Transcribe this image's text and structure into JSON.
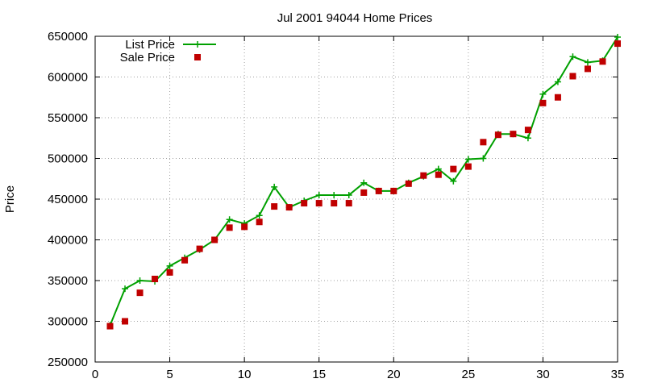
{
  "chart_data": {
    "type": "line",
    "title": "Jul 2001 94044 Home Prices",
    "xlabel": "",
    "ylabel": "Price",
    "xlim": [
      0,
      35
    ],
    "ylim": [
      250000,
      650000
    ],
    "x_ticks": [
      0,
      5,
      10,
      15,
      20,
      25,
      30,
      35
    ],
    "y_ticks": [
      250000,
      300000,
      350000,
      400000,
      450000,
      500000,
      550000,
      600000,
      650000
    ],
    "grid": true,
    "legend_position": "top-left",
    "x": [
      1,
      2,
      3,
      4,
      5,
      6,
      7,
      8,
      9,
      10,
      11,
      12,
      13,
      14,
      15,
      16,
      17,
      18,
      19,
      20,
      21,
      22,
      23,
      24,
      25,
      26,
      27,
      28,
      29,
      30,
      31,
      32,
      33,
      34,
      35
    ],
    "series": [
      {
        "name": "List Price",
        "style": "line-plus",
        "color": "#00a000",
        "values": [
          295000,
          340000,
          350000,
          349000,
          368000,
          378000,
          388000,
          400000,
          425000,
          420000,
          430000,
          465000,
          440000,
          448000,
          455000,
          455000,
          455000,
          470000,
          460000,
          460000,
          470000,
          478000,
          487000,
          472000,
          499000,
          500000,
          530000,
          530000,
          525000,
          579000,
          594000,
          625000,
          618000,
          620000,
          649000
        ]
      },
      {
        "name": "Sale Price",
        "style": "square-points",
        "color": "#c00000",
        "values": [
          294000,
          300000,
          335000,
          352000,
          360000,
          375000,
          389000,
          400000,
          415000,
          416000,
          422000,
          441000,
          440000,
          445000,
          445000,
          445000,
          445000,
          458000,
          460000,
          460000,
          469000,
          479000,
          480000,
          487000,
          490000,
          520000,
          529000,
          530000,
          535000,
          568000,
          575000,
          601000,
          610000,
          619000,
          641000
        ]
      }
    ]
  }
}
